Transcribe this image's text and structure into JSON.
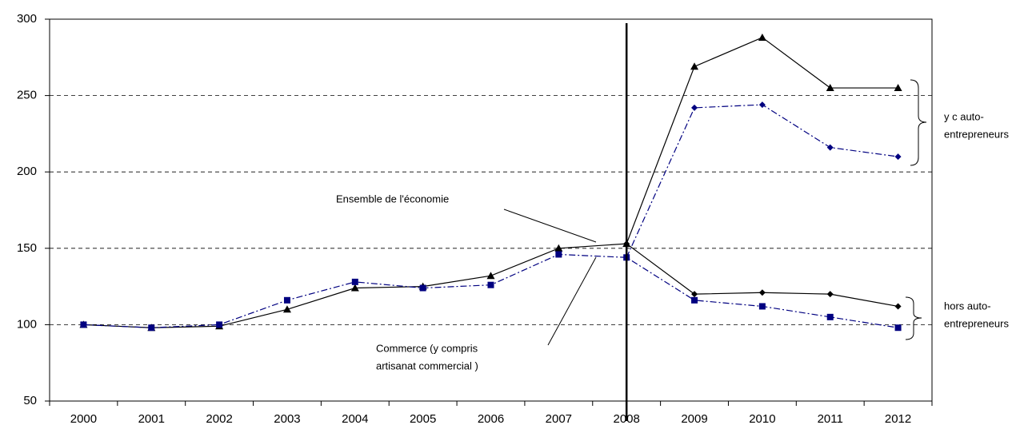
{
  "chart_data": {
    "type": "line",
    "categories": [
      "2000",
      "2001",
      "2002",
      "2003",
      "2004",
      "2005",
      "2006",
      "2007",
      "2008",
      "2009",
      "2010",
      "2011",
      "2012"
    ],
    "series": [
      {
        "color": "#000000",
        "marker": "diamond",
        "dash": "solid",
        "values": [
          null,
          null,
          null,
          null,
          null,
          null,
          null,
          null,
          153,
          120,
          121,
          120,
          112
        ]
      },
      {
        "color": "#000000",
        "marker": "triangle",
        "dash": "solid",
        "values": [
          100,
          98,
          99,
          110,
          124,
          125,
          132,
          150,
          153,
          269,
          288,
          255,
          255
        ]
      },
      {
        "color": "#000080",
        "marker": "square",
        "dash": "dashdot",
        "values": [
          100,
          98,
          100,
          116,
          128,
          124,
          126,
          146,
          144,
          116,
          112,
          105,
          98
        ]
      },
      {
        "color": "#000080",
        "marker": "diamond",
        "dash": "dashdot",
        "values": [
          null,
          null,
          null,
          null,
          null,
          null,
          null,
          null,
          144,
          242,
          244,
          216,
          210
        ]
      }
    ],
    "ylim": [
      50,
      300
    ],
    "yticks": [
      50,
      100,
      150,
      200,
      250,
      300
    ],
    "grid": true,
    "annotations": [
      {
        "lines": [
          "Ensemble de l'économie"
        ]
      },
      {
        "lines": [
          "Commerce (y compris",
          "artisanat commercial )"
        ]
      },
      {
        "lines": [
          "y c auto-",
          "entrepreneurs"
        ]
      },
      {
        "lines": [
          "hors auto-",
          "entrepreneurs"
        ]
      }
    ]
  }
}
